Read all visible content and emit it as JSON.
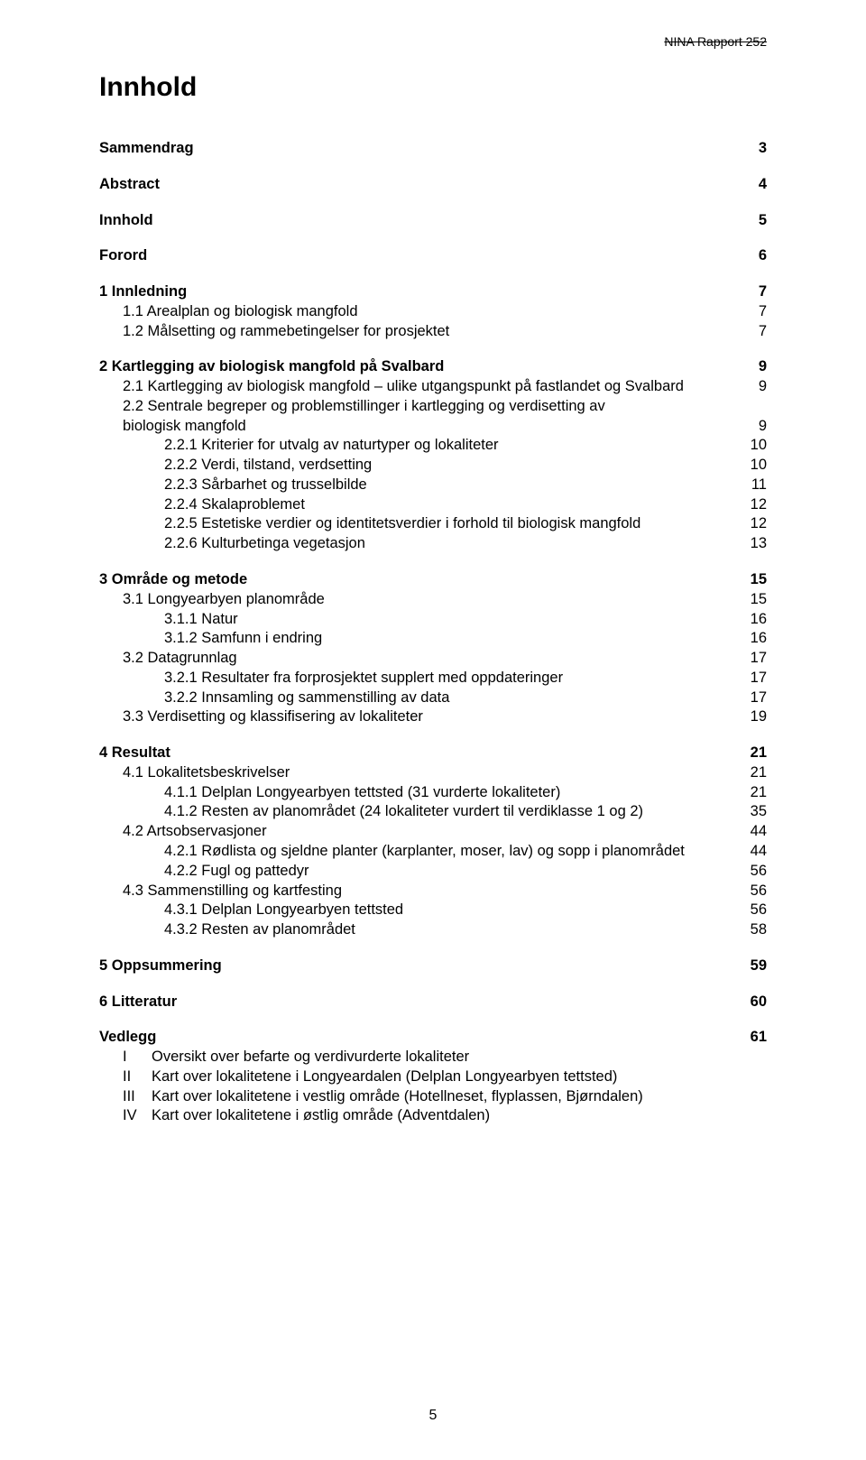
{
  "header": {
    "series": "NINA Rapport 252"
  },
  "title": "Innhold",
  "page_number": "5",
  "toc": [
    {
      "label": "Sammendrag",
      "page": "3",
      "bold": true,
      "indent": 0
    },
    {
      "gap": true
    },
    {
      "label": "Abstract",
      "page": "4",
      "bold": true,
      "indent": 0
    },
    {
      "gap": true
    },
    {
      "label": "Innhold",
      "page": "5",
      "bold": true,
      "indent": 0
    },
    {
      "gap": true
    },
    {
      "label": "Forord",
      "page": "6",
      "bold": true,
      "indent": 0
    },
    {
      "gap": true
    },
    {
      "label": "1  Innledning",
      "page": "7",
      "bold": true,
      "indent": 0
    },
    {
      "label": "1.1  Arealplan og biologisk mangfold",
      "page": "7",
      "bold": false,
      "indent": 1
    },
    {
      "label": "1.2  Målsetting og rammebetingelser for prosjektet",
      "page": "7",
      "bold": false,
      "indent": 1
    },
    {
      "gap": true
    },
    {
      "label": "2  Kartlegging av biologisk mangfold på Svalbard",
      "page": "9",
      "bold": true,
      "indent": 0
    },
    {
      "label": "2.1  Kartlegging av biologisk mangfold – ulike utgangspunkt på fastlandet og Svalbard",
      "page": "9",
      "bold": false,
      "indent": 1
    },
    {
      "label": "2.2  Sentrale begreper og problemstillinger i kartlegging og verdisetting av biologisk mangfold",
      "page": "9",
      "bold": false,
      "indent": 1,
      "wrap_indent": 1
    },
    {
      "label": "2.2.1  Kriterier for utvalg av naturtyper og lokaliteter",
      "page": "10",
      "bold": false,
      "indent": 2
    },
    {
      "label": "2.2.2  Verdi, tilstand, verdsetting",
      "page": "10",
      "bold": false,
      "indent": 2
    },
    {
      "label": "2.2.3  Sårbarhet og trusselbilde",
      "page": "11",
      "bold": false,
      "indent": 2
    },
    {
      "label": "2.2.4  Skalaproblemet",
      "page": "12",
      "bold": false,
      "indent": 2
    },
    {
      "label": "2.2.5  Estetiske verdier og identitetsverdier i forhold til biologisk mangfold",
      "page": "12",
      "bold": false,
      "indent": 2
    },
    {
      "label": "2.2.6  Kulturbetinga vegetasjon",
      "page": "13",
      "bold": false,
      "indent": 2
    },
    {
      "gap": true
    },
    {
      "label": "3  Område og metode",
      "page": "15",
      "bold": true,
      "indent": 0
    },
    {
      "label": "3.1  Longyearbyen planområde",
      "page": "15",
      "bold": false,
      "indent": 1
    },
    {
      "label": "3.1.1  Natur",
      "page": "16",
      "bold": false,
      "indent": 2
    },
    {
      "label": "3.1.2  Samfunn i endring",
      "page": "16",
      "bold": false,
      "indent": 2
    },
    {
      "label": "3.2  Datagrunnlag",
      "page": "17",
      "bold": false,
      "indent": 1
    },
    {
      "label": "3.2.1  Resultater fra forprosjektet supplert med oppdateringer",
      "page": "17",
      "bold": false,
      "indent": 2
    },
    {
      "label": "3.2.2  Innsamling og sammenstilling av data",
      "page": "17",
      "bold": false,
      "indent": 2
    },
    {
      "label": "3.3  Verdisetting og klassifisering av lokaliteter",
      "page": "19",
      "bold": false,
      "indent": 1
    },
    {
      "gap": true
    },
    {
      "label": "4  Resultat",
      "page": "21",
      "bold": true,
      "indent": 0
    },
    {
      "label": "4.1  Lokalitetsbeskrivelser",
      "page": "21",
      "bold": false,
      "indent": 1
    },
    {
      "label": "4.1.1  Delplan Longyearbyen tettsted (31 vurderte lokaliteter)",
      "page": "21",
      "bold": false,
      "indent": 2
    },
    {
      "label": "4.1.2  Resten av planområdet (24 lokaliteter vurdert til verdiklasse 1 og 2)",
      "page": "35",
      "bold": false,
      "indent": 2
    },
    {
      "label": "4.2  Artsobservasjoner",
      "page": "44",
      "bold": false,
      "indent": 1
    },
    {
      "label": "4.2.1  Rødlista og sjeldne planter (karplanter, moser, lav) og sopp i planområdet",
      "page": "44",
      "bold": false,
      "indent": 2
    },
    {
      "label": "4.2.2  Fugl og pattedyr",
      "page": "56",
      "bold": false,
      "indent": 2
    },
    {
      "label": "4.3  Sammenstilling og kartfesting",
      "page": "56",
      "bold": false,
      "indent": 1
    },
    {
      "label": "4.3.1  Delplan Longyearbyen tettsted",
      "page": "56",
      "bold": false,
      "indent": 2
    },
    {
      "label": "4.3.2  Resten av planområdet",
      "page": "58",
      "bold": false,
      "indent": 2
    },
    {
      "gap": true
    },
    {
      "label": "5  Oppsummering",
      "page": "59",
      "bold": true,
      "indent": 0
    },
    {
      "gap": true
    },
    {
      "label": "6  Litteratur",
      "page": "60",
      "bold": true,
      "indent": 0
    },
    {
      "gap": true
    },
    {
      "label": "Vedlegg",
      "page": "61",
      "bold": true,
      "indent": 0
    }
  ],
  "appendices": [
    {
      "roman": "I",
      "desc": "Oversikt over befarte og verdivurderte lokaliteter"
    },
    {
      "roman": "II",
      "desc": "Kart over lokalitetene i Longyeardalen (Delplan Longyearbyen tettsted)"
    },
    {
      "roman": "III",
      "desc": "Kart over lokalitetene i vestlig område (Hotellneset, flyplassen, Bjørndalen)"
    },
    {
      "roman": "IV",
      "desc": "Kart over lokalitetene i østlig område (Adventdalen)"
    }
  ]
}
